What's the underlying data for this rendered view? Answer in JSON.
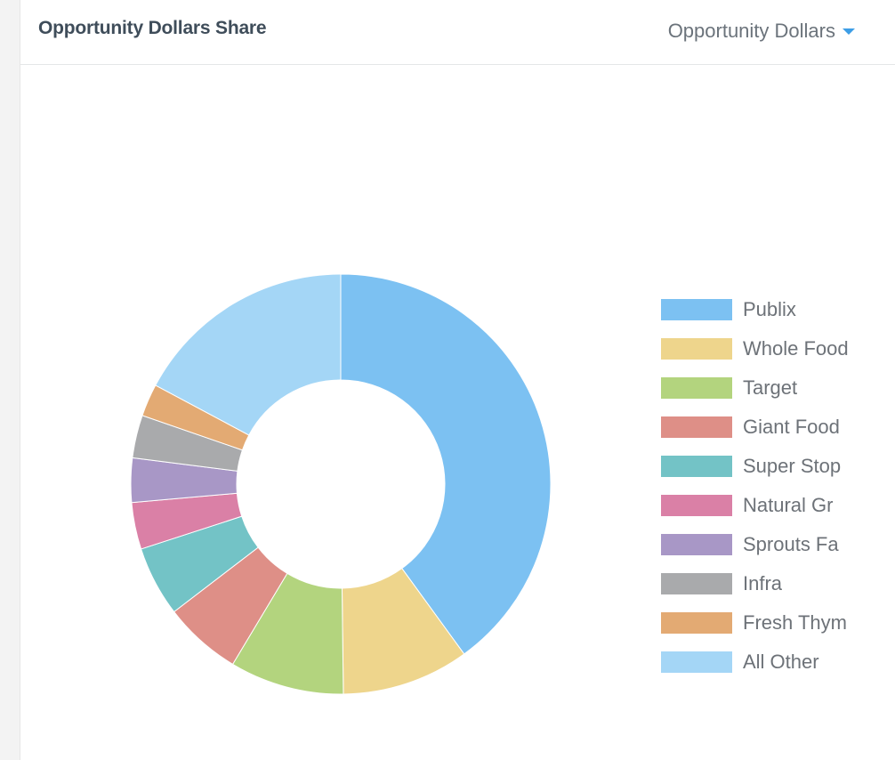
{
  "header": {
    "title": "Opportunity Dollars Share",
    "metric_selector": {
      "selected": "Opportunity Dollars",
      "icon": "caret-down-icon",
      "accent": "#3d9ee6"
    }
  },
  "chart_data": {
    "type": "pie",
    "donut": true,
    "legend_position": "right",
    "categories": [
      "Publix",
      "Whole Food",
      "Target",
      "Giant Food",
      "Super Stop",
      "Natural Gr",
      "Sprouts Fa",
      "Infra",
      "Fresh Thym",
      "All Other"
    ],
    "values": [
      40.0,
      9.8,
      8.8,
      6.0,
      5.4,
      3.6,
      3.4,
      3.3,
      2.5,
      17.2
    ],
    "colors": [
      "#7cc1f2",
      "#eed58c",
      "#b3d47e",
      "#de8f87",
      "#73c3c6",
      "#da80a6",
      "#a897c6",
      "#a9aaac",
      "#e3aa73",
      "#a4d6f6"
    ]
  }
}
